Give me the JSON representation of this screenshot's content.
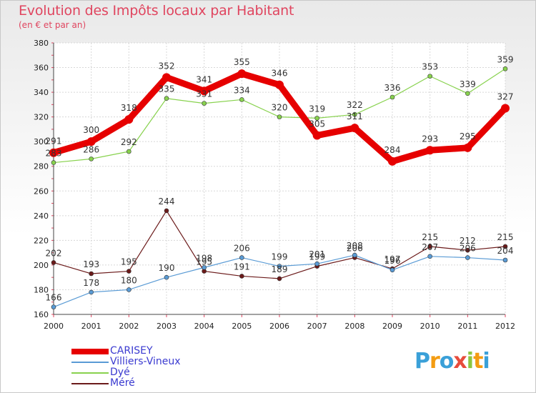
{
  "chart_data": {
    "type": "line",
    "title": "Evolution des Impôts locaux par Habitant",
    "subtitle": "(en € et par an)",
    "xlabel": "",
    "ylabel": "",
    "categories": [
      "2000",
      "2001",
      "2002",
      "2003",
      "2004",
      "2005",
      "2006",
      "2007",
      "2008",
      "2009",
      "2010",
      "2011",
      "2012"
    ],
    "ylim": [
      160,
      380
    ],
    "yticks": [
      "160",
      "180",
      "200",
      "220",
      "240",
      "260",
      "280",
      "300",
      "320",
      "340",
      "360",
      "380"
    ],
    "grid": true,
    "legend_position": "bottom-left",
    "series": [
      {
        "name": "CARISEY",
        "color": "#e60000",
        "values": [
          291,
          300,
          318,
          352,
          341,
          355,
          346,
          305,
          311,
          284,
          293,
          295,
          327
        ],
        "labels": [
          "291",
          "300",
          "318",
          "352",
          "341",
          "355",
          "346",
          "305",
          "311",
          "284",
          "293",
          "295",
          "327"
        ]
      },
      {
        "name": "Villiers-Vineux",
        "color": "#5a9bd5",
        "values": [
          166,
          178,
          180,
          190,
          198,
          206,
          199,
          201,
          208,
          196,
          207,
          206,
          204
        ],
        "labels": [
          "166",
          "178",
          "180",
          "190",
          "198",
          "206",
          "199",
          "201",
          "208",
          "196",
          "207",
          "206",
          "204"
        ]
      },
      {
        "name": "Dyé",
        "color": "#88d24e",
        "values": [
          283,
          286,
          292,
          335,
          331,
          334,
          320,
          319,
          322,
          336,
          353,
          339,
          359
        ],
        "labels": [
          "283",
          "286",
          "292",
          "335",
          "331",
          "334",
          "320",
          "319",
          "322",
          "336",
          "353",
          "339",
          "359"
        ]
      },
      {
        "name": "Méré",
        "color": "#6b1a1a",
        "values": [
          202,
          193,
          195,
          244,
          195,
          191,
          189,
          199,
          206,
          197,
          215,
          212,
          215
        ],
        "labels": [
          "202",
          "193",
          "195",
          "244",
          "195",
          "191",
          "189",
          "199",
          "206",
          "197",
          "215",
          "212",
          "215"
        ]
      }
    ]
  },
  "logo": {
    "letters": [
      "P",
      "r",
      "o",
      "x",
      "i",
      "t",
      "i"
    ],
    "colors": [
      "#3aa0d8",
      "#f39c12",
      "#3aa0d8",
      "#e74c3c",
      "#8cc63f",
      "#f39c12",
      "#3aa0d8"
    ]
  }
}
